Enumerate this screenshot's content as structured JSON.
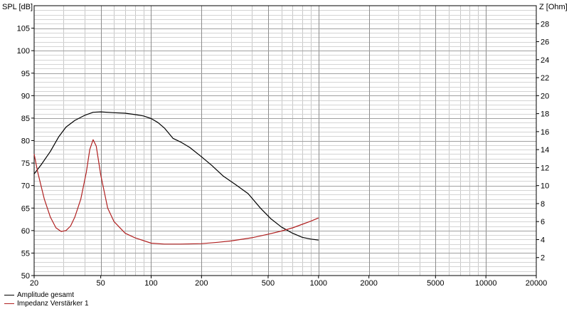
{
  "chart_data": {
    "type": "line",
    "title": "",
    "xlabel": "",
    "ylabel": "SPL [dB]",
    "y2label": "Z [Ohm]",
    "x_scale": "log",
    "xlim": [
      20,
      20000
    ],
    "ylim": [
      50,
      110
    ],
    "y2lim": [
      0,
      30
    ],
    "x_ticks": [
      20,
      50,
      100,
      200,
      500,
      1000,
      2000,
      5000,
      10000,
      20000
    ],
    "x_tick_labels": [
      "20",
      "50",
      "100",
      "200",
      "500",
      "1000",
      "2000",
      "5000",
      "10000",
      "20000"
    ],
    "y_ticks": [
      50,
      55,
      60,
      65,
      70,
      75,
      80,
      85,
      90,
      95,
      100,
      105
    ],
    "y_tick_labels": [
      "50",
      "55",
      "60",
      "65",
      "70",
      "75",
      "80",
      "85",
      "90",
      "95",
      "100",
      "105"
    ],
    "y2_ticks": [
      2,
      4,
      6,
      8,
      10,
      12,
      14,
      16,
      18,
      20,
      22,
      24,
      26,
      28
    ],
    "y2_tick_labels": [
      "2",
      "4",
      "6",
      "8",
      "10",
      "12",
      "14",
      "16",
      "18",
      "20",
      "22",
      "24",
      "26",
      "28"
    ],
    "grid": true,
    "legend_position": "bottom-left",
    "series": [
      {
        "name": "Amplitude gesamt",
        "axis": "left",
        "color": "#000000",
        "x": [
          20,
          22,
          25,
          28,
          31,
          35,
          40,
          45,
          50,
          60,
          70,
          80,
          90,
          100,
          110,
          120,
          135,
          150,
          170,
          200,
          230,
          270,
          320,
          380,
          450,
          520,
          600,
          700,
          800,
          900,
          1000
        ],
        "y": [
          72.6,
          74.6,
          77.6,
          80.8,
          83.0,
          84.5,
          85.6,
          86.3,
          86.4,
          86.2,
          86.1,
          85.8,
          85.5,
          84.9,
          84.0,
          82.8,
          80.5,
          79.7,
          78.5,
          76.4,
          74.5,
          72.1,
          70.2,
          68.2,
          65.0,
          62.6,
          60.8,
          59.4,
          58.5,
          58.1,
          57.9
        ]
      },
      {
        "name": "Impedanz Verstärker 1",
        "axis": "right",
        "color": "#b02020",
        "x": [
          20,
          21,
          23,
          25,
          27,
          29,
          31,
          33,
          35,
          38,
          41,
          43,
          45,
          47,
          50,
          55,
          60,
          70,
          80,
          100,
          120,
          150,
          200,
          250,
          300,
          400,
          500,
          600,
          700,
          800,
          900,
          1000
        ],
        "y": [
          13.5,
          11.5,
          8.5,
          6.5,
          5.3,
          4.9,
          5.0,
          5.5,
          6.5,
          8.5,
          11.5,
          14.0,
          15.1,
          14.4,
          11.2,
          7.5,
          6.0,
          4.7,
          4.2,
          3.6,
          3.5,
          3.5,
          3.55,
          3.7,
          3.85,
          4.2,
          4.6,
          4.95,
          5.3,
          5.7,
          6.05,
          6.4
        ]
      }
    ]
  }
}
